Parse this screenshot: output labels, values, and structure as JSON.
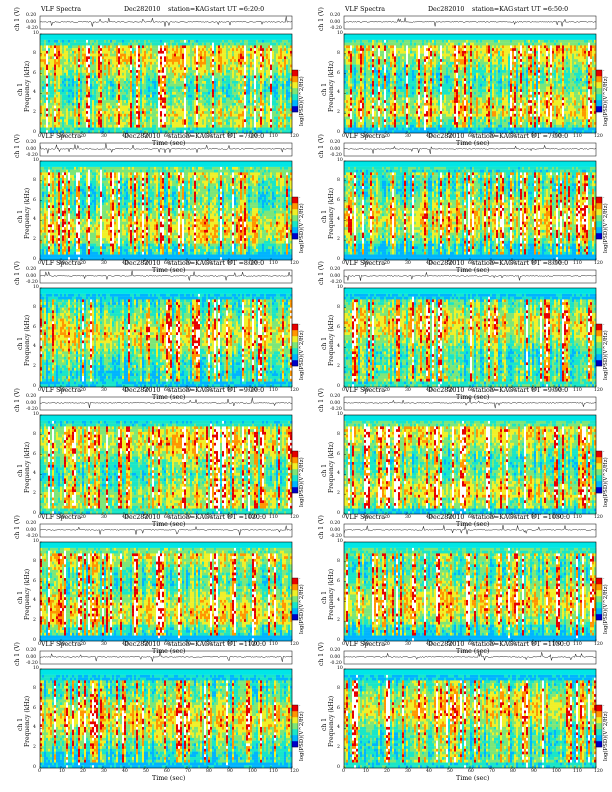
{
  "layout": {
    "cols": 2,
    "rows": 6
  },
  "labels": {
    "ts_ylabel": "ch 1 (V)",
    "spec_ylabel_1": "ch 1",
    "spec_ylabel_2": "Frequency (kHz)",
    "xlabel": "Time (sec)",
    "cbar_label": "log(PSD)(V^2/Hz)",
    "cbar_ticks": [
      "-",
      "-"
    ],
    "ts_yticks": [
      "0.20",
      "0.00",
      "-0.20"
    ],
    "freq_ticks": [
      "0",
      "2",
      "4",
      "6",
      "8",
      "10"
    ],
    "time_ticks": [
      "0",
      "10",
      "20",
      "30",
      "40",
      "50",
      "60",
      "70",
      "80",
      "90",
      "100",
      "110",
      "120"
    ]
  },
  "colors": {
    "spectrum_scale": [
      "#0000c8",
      "#00b4ff",
      "#19e6c8",
      "#7de678",
      "#f0f028",
      "#ff9600",
      "#e60000",
      "#ffffff"
    ],
    "background_band": "#00e6e6",
    "trace": "#000000"
  },
  "chart_data": [
    {
      "type": "heatmap",
      "title": "VLF Spectra",
      "date": "Dec282010",
      "station": "station=KAG",
      "start": "start UT =6:20:0",
      "xlim": [
        0,
        120
      ],
      "ylim": [
        0,
        10
      ],
      "ts_ylim": [
        -0.2,
        0.2
      ]
    },
    {
      "type": "heatmap",
      "title": "VLF Spectra",
      "date": "Dec282010",
      "station": "station=KAG",
      "start": "start UT =6:50:0",
      "xlim": [
        0,
        120
      ],
      "ylim": [
        0,
        10
      ],
      "ts_ylim": [
        -0.2,
        0.2
      ]
    },
    {
      "type": "heatmap",
      "title": "VLF Spectra",
      "date": "Dec282010",
      "station": "station=KAG",
      "start": "start UT =7:20:0",
      "xlim": [
        0,
        120
      ],
      "ylim": [
        0,
        10
      ],
      "ts_ylim": [
        -0.2,
        0.2
      ]
    },
    {
      "type": "heatmap",
      "title": "VLF Spectra",
      "date": "Dec282010",
      "station": "station=KAG",
      "start": "start UT =7:50:0",
      "xlim": [
        0,
        120
      ],
      "ylim": [
        0,
        10
      ],
      "ts_ylim": [
        -0.2,
        0.2
      ]
    },
    {
      "type": "heatmap",
      "title": "VLF Spectra",
      "date": "Dec282010",
      "station": "station=KAG",
      "start": "start UT =8:20:0",
      "xlim": [
        0,
        120
      ],
      "ylim": [
        0,
        10
      ],
      "ts_ylim": [
        -0.2,
        0.2
      ]
    },
    {
      "type": "heatmap",
      "title": "VLF Spectra",
      "date": "Dec282010",
      "station": "station=KAG",
      "start": "start UT =8:50:0",
      "xlim": [
        0,
        120
      ],
      "ylim": [
        0,
        10
      ],
      "ts_ylim": [
        -0.2,
        0.2
      ]
    },
    {
      "type": "heatmap",
      "title": "VLF Spectra",
      "date": "Dec282010",
      "station": "station=KAG",
      "start": "start UT =9:20:0",
      "xlim": [
        0,
        120
      ],
      "ylim": [
        0,
        10
      ],
      "ts_ylim": [
        -0.2,
        0.2
      ]
    },
    {
      "type": "heatmap",
      "title": "VLF Spectra",
      "date": "Dec282010",
      "station": "station=KAG",
      "start": "start UT =9:50:0",
      "xlim": [
        0,
        120
      ],
      "ylim": [
        0,
        10
      ],
      "ts_ylim": [
        -0.2,
        0.2
      ]
    },
    {
      "type": "heatmap",
      "title": "VLF Spectra",
      "date": "Dec282010",
      "station": "station=KAG",
      "start": "start UT =1020:0",
      "xlim": [
        0,
        120
      ],
      "ylim": [
        0,
        10
      ],
      "ts_ylim": [
        -0.2,
        0.2
      ]
    },
    {
      "type": "heatmap",
      "title": "VLF Spectra",
      "date": "Dec282010",
      "station": "station=KAG",
      "start": "start UT =1050:0",
      "xlim": [
        0,
        120
      ],
      "ylim": [
        0,
        10
      ],
      "ts_ylim": [
        -0.2,
        0.2
      ]
    },
    {
      "type": "heatmap",
      "title": "VLF Spectra",
      "date": "Dec282010",
      "station": "station=KAG",
      "start": "start UT =1120:0",
      "xlim": [
        0,
        120
      ],
      "ylim": [
        0,
        10
      ],
      "ts_ylim": [
        -0.2,
        0.2
      ]
    },
    {
      "type": "heatmap",
      "title": "VLF Spectra",
      "date": "Dec282010",
      "station": "station=KAG",
      "start": "start UT =1150:0",
      "xlim": [
        0,
        120
      ],
      "ylim": [
        0,
        10
      ],
      "ts_ylim": [
        -0.2,
        0.2
      ]
    }
  ]
}
